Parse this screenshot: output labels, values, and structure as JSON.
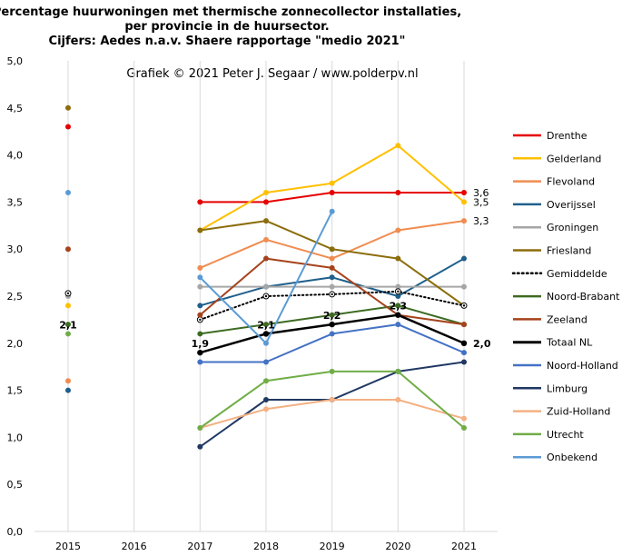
{
  "chart_data": {
    "type": "line",
    "title_lines": [
      "Percentage huurwoningen met thermische zonnecollector installaties,",
      "per provincie in de huursector.",
      "Cijfers: Aedes n.a.v. Shaere rapportage \"medio 2021\""
    ],
    "subtitle": "Grafiek  © 2021 Peter J. Segaar / www.polderpv.nl",
    "x": [
      2015,
      2016,
      2017,
      2018,
      2019,
      2020,
      2021
    ],
    "x_tick_labels": [
      "2015",
      "2016",
      "2017",
      "2018",
      "2019",
      "2020",
      "2021"
    ],
    "y_tick_labels": [
      "0,0",
      "0,5",
      "1,0",
      "1,5",
      "2,0",
      "2,5",
      "3,0",
      "3,5",
      "4,0",
      "4,5",
      "5,0"
    ],
    "ylim": [
      0,
      5
    ],
    "grid": "vertical",
    "legend_position": "right",
    "series": [
      {
        "name": "Drenthe",
        "color": "#e60000",
        "style": "solid",
        "values": [
          4.3,
          null,
          3.5,
          3.5,
          3.6,
          3.6,
          3.6
        ]
      },
      {
        "name": "Gelderland",
        "color": "#ffc000",
        "style": "solid",
        "values": [
          2.4,
          null,
          3.2,
          3.6,
          3.7,
          4.1,
          3.5
        ]
      },
      {
        "name": "Flevoland",
        "color": "#f08c50",
        "style": "solid",
        "values": [
          1.6,
          null,
          2.8,
          3.1,
          2.9,
          3.2,
          3.3
        ]
      },
      {
        "name": "Overijssel",
        "color": "#1f5f8b",
        "style": "solid",
        "values": [
          1.5,
          null,
          2.4,
          2.6,
          2.7,
          2.5,
          2.9
        ]
      },
      {
        "name": "Groningen",
        "color": "#a6a6a6",
        "style": "solid",
        "values": [
          2.5,
          null,
          2.6,
          2.6,
          2.6,
          2.6,
          2.6
        ]
      },
      {
        "name": "Friesland",
        "color": "#8b6d0b",
        "style": "solid",
        "values": [
          4.5,
          null,
          3.2,
          3.3,
          3.0,
          2.9,
          2.4
        ]
      },
      {
        "name": "Gemiddelde",
        "color": "#000000",
        "style": "dotted",
        "values": [
          2.53,
          null,
          2.25,
          2.5,
          2.52,
          2.55,
          2.4
        ]
      },
      {
        "name": "Noord-Brabant",
        "color": "#3d6b22",
        "style": "solid",
        "values": [
          2.2,
          null,
          2.1,
          2.2,
          2.3,
          2.4,
          2.2
        ]
      },
      {
        "name": "Zeeland",
        "color": "#a5431c",
        "style": "solid",
        "values": [
          3.0,
          null,
          2.3,
          2.9,
          2.8,
          2.3,
          2.2
        ]
      },
      {
        "name": "Totaal NL",
        "color": "#000000",
        "style": "solid-thick",
        "values": [
          null,
          null,
          1.9,
          2.1,
          2.2,
          2.3,
          2.0
        ]
      },
      {
        "name": "Noord-Holland",
        "color": "#4472c4",
        "style": "solid",
        "values": [
          null,
          null,
          1.8,
          1.8,
          2.1,
          2.2,
          1.9
        ]
      },
      {
        "name": "Limburg",
        "color": "#203864",
        "style": "solid",
        "values": [
          null,
          null,
          0.9,
          1.4,
          1.4,
          1.7,
          1.8
        ]
      },
      {
        "name": "Zuid-Holland",
        "color": "#f4b183",
        "style": "solid",
        "values": [
          null,
          null,
          1.1,
          1.3,
          1.4,
          1.4,
          1.2
        ]
      },
      {
        "name": "Utrecht",
        "color": "#70ad47",
        "style": "solid",
        "values": [
          2.1,
          null,
          1.1,
          1.6,
          1.7,
          1.7,
          1.1
        ]
      },
      {
        "name": "Onbekend",
        "color": "#5b9bd5",
        "style": "solid",
        "values": [
          3.6,
          null,
          2.7,
          2.0,
          3.4,
          null,
          null
        ]
      }
    ],
    "data_labels": [
      {
        "text": "2,1",
        "x": 2015,
        "y": 2.1,
        "bold": true,
        "anchor": "above"
      },
      {
        "text": "1,9",
        "x": 2017,
        "y": 1.9,
        "bold": true,
        "anchor": "above"
      },
      {
        "text": "2,1",
        "x": 2018,
        "y": 2.1,
        "bold": true,
        "anchor": "above"
      },
      {
        "text": "2,2",
        "x": 2019,
        "y": 2.2,
        "bold": true,
        "anchor": "above"
      },
      {
        "text": "2,3",
        "x": 2020,
        "y": 2.3,
        "bold": true,
        "anchor": "above"
      },
      {
        "text": "2,0",
        "x": 2021,
        "y": 2.0,
        "bold": true,
        "anchor": "right"
      },
      {
        "text": "3,6",
        "x": 2021,
        "y": 3.6,
        "bold": false,
        "anchor": "right"
      },
      {
        "text": "3,5",
        "x": 2021,
        "y": 3.5,
        "bold": false,
        "anchor": "right"
      },
      {
        "text": "3,3",
        "x": 2021,
        "y": 3.3,
        "bold": false,
        "anchor": "right"
      }
    ]
  }
}
